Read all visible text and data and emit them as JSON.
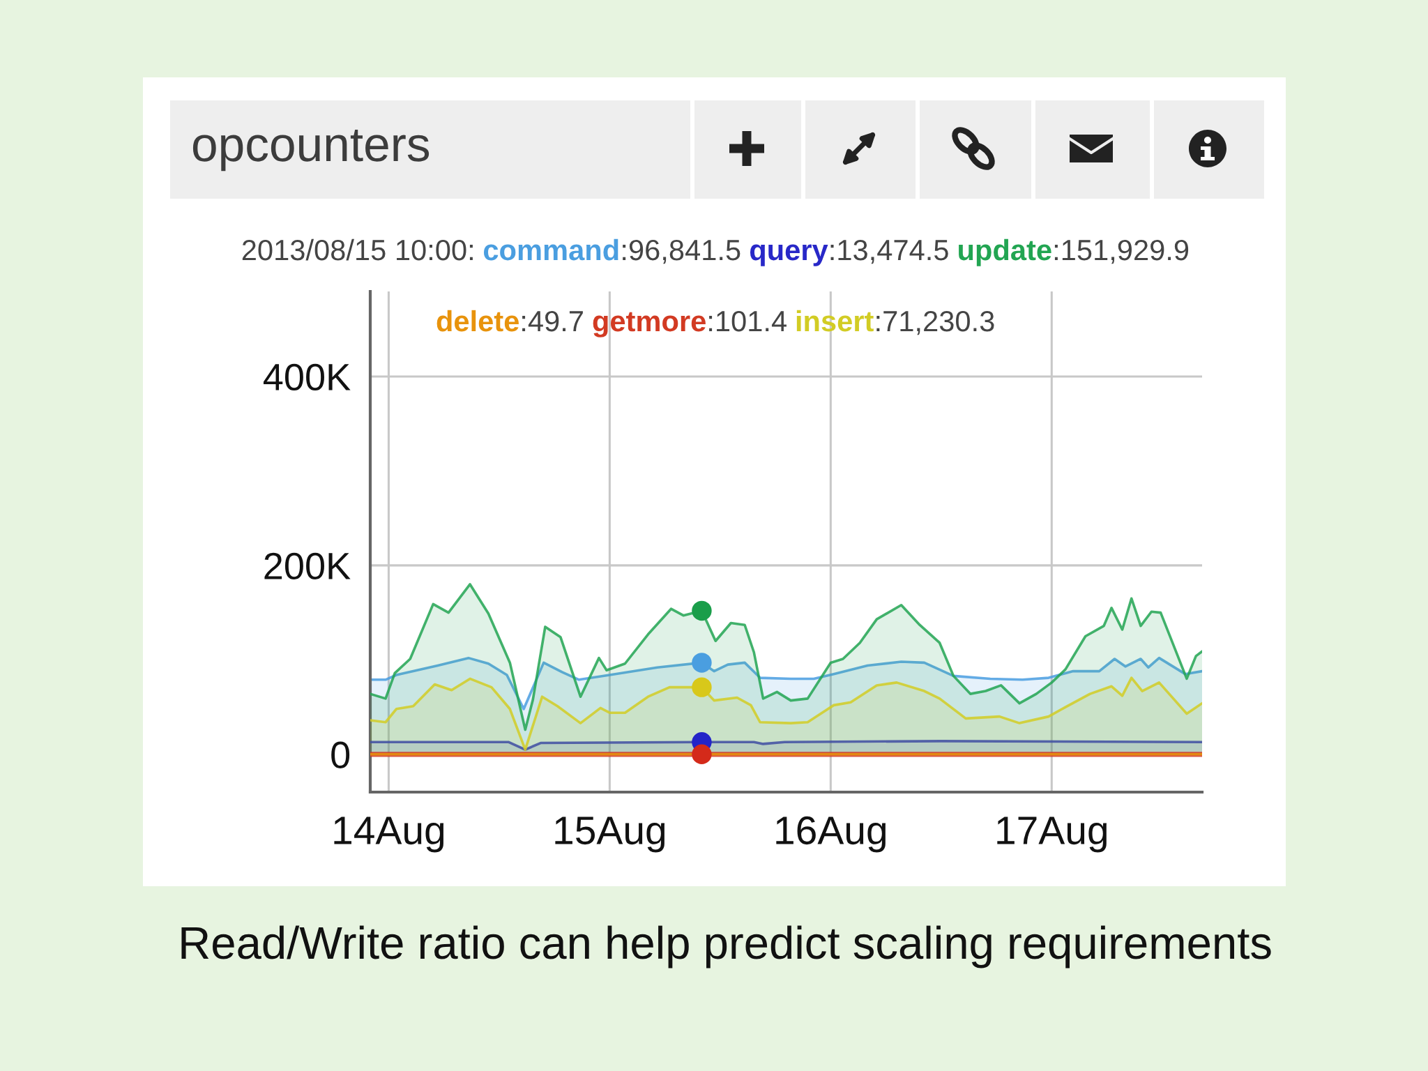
{
  "chart_data": {
    "type": "area",
    "title": "opcounters",
    "annotations": [
      "2013/08/15 10:00:",
      ":96,841.5",
      ":13,474.5",
      ":151,929.9",
      ":49.7",
      ":101.4",
      ":71,230.3",
      "Read/Write ratio can help predict scaling requirements"
    ],
    "legend": "top",
    "grid": true,
    "xlim": [
      "2013-08-13T22:00",
      "2013-08-17T16:20"
    ],
    "ylim": [
      -40000,
      490000
    ],
    "xticks": [
      {
        "value": "2013-08-14",
        "label": "14Aug"
      },
      {
        "value": "2013-08-15",
        "label": "15Aug"
      },
      {
        "value": "2013-08-16",
        "label": "16Aug"
      },
      {
        "value": "2013-08-17",
        "label": "17Aug"
      }
    ],
    "yticks": [
      0,
      {
        "value": 200000,
        "label": "200K"
      },
      {
        "value": 400000,
        "label": "400K"
      }
    ],
    "series": [
      {
        "name": "command",
        "color": "#4a9ee0",
        "x": [
          "2013-08-13T22:00",
          "2013-08-13T23:40",
          "2013-08-14T00:50",
          "2013-08-14T05:20",
          "2013-08-14T08:40",
          "2013-08-14T10:50",
          "2013-08-14T12:50",
          "2013-08-14T14:40",
          "2013-08-14T16:50",
          "2013-08-14T18:50",
          "2013-08-14T20:40",
          "2013-08-15T00:00",
          "2013-08-15T05:10",
          "2013-08-15T10:00",
          "2013-08-15T11:20",
          "2013-08-15T12:50",
          "2013-08-15T14:40",
          "2013-08-15T16:20",
          "2013-08-15T19:40",
          "2013-08-15T22:10",
          "2013-08-16T00:20",
          "2013-08-16T04:00",
          "2013-08-16T07:40",
          "2013-08-16T10:10",
          "2013-08-16T13:20",
          "2013-08-16T17:20",
          "2013-08-16T20:50",
          "2013-08-16T23:40",
          "2013-08-17T02:20",
          "2013-08-17T05:10",
          "2013-08-17T06:50",
          "2013-08-17T08:00",
          "2013-08-17T09:40",
          "2013-08-17T10:30",
          "2013-08-17T11:40",
          "2013-08-17T14:30",
          "2013-08-17T16:20"
        ],
        "values": [
          79000,
          79000,
          84000,
          94000,
          102000,
          96000,
          84000,
          48000,
          97000,
          87000,
          79000,
          84000,
          92000,
          97000,
          88000,
          95000,
          97000,
          81000,
          80000,
          80000,
          85000,
          94000,
          98000,
          97000,
          83000,
          80000,
          79000,
          81000,
          88000,
          88000,
          101000,
          93000,
          101000,
          92000,
          102000,
          85000,
          88000
        ]
      },
      {
        "name": "query",
        "color": "#2828c8",
        "x": [
          "2013-08-13T22:00",
          "2013-08-14T13:00",
          "2013-08-14T14:50",
          "2013-08-14T16:30",
          "2013-08-15T10:00",
          "2013-08-15T15:40",
          "2013-08-15T16:40",
          "2013-08-15T19:00",
          "2013-08-16T12:00",
          "2013-08-17T16:20"
        ],
        "values": [
          13000,
          13000,
          5000,
          12000,
          13000,
          13000,
          11000,
          13000,
          14000,
          13000
        ]
      },
      {
        "name": "update",
        "color": "#22a552",
        "x": [
          "2013-08-13T22:00",
          "2013-08-13T23:40",
          "2013-08-14T00:40",
          "2013-08-14T02:20",
          "2013-08-14T04:50",
          "2013-08-14T06:30",
          "2013-08-14T08:50",
          "2013-08-14T10:50",
          "2013-08-14T13:10",
          "2013-08-14T14:50",
          "2013-08-14T15:40",
          "2013-08-14T17:00",
          "2013-08-14T18:40",
          "2013-08-14T20:50",
          "2013-08-14T22:50",
          "2013-08-14T23:40",
          "2013-08-15T01:40",
          "2013-08-15T04:10",
          "2013-08-15T06:40",
          "2013-08-15T08:00",
          "2013-08-15T10:00",
          "2013-08-15T11:30",
          "2013-08-15T13:10",
          "2013-08-15T14:40",
          "2013-08-15T15:40",
          "2013-08-15T16:40",
          "2013-08-15T18:10",
          "2013-08-15T19:40",
          "2013-08-15T21:30",
          "2013-08-16T00:00",
          "2013-08-16T01:20",
          "2013-08-16T03:10",
          "2013-08-16T05:00",
          "2013-08-16T07:40",
          "2013-08-16T09:40",
          "2013-08-16T11:50",
          "2013-08-16T13:20",
          "2013-08-16T15:10",
          "2013-08-16T16:50",
          "2013-08-16T18:30",
          "2013-08-16T20:30",
          "2013-08-16T22:20",
          "2013-08-17T00:00",
          "2013-08-17T01:30",
          "2013-08-17T03:40",
          "2013-08-17T05:40",
          "2013-08-17T06:30",
          "2013-08-17T07:40",
          "2013-08-17T08:40",
          "2013-08-17T09:40",
          "2013-08-17T10:50",
          "2013-08-17T11:50",
          "2013-08-17T14:40",
          "2013-08-17T15:40",
          "2013-08-17T16:20"
        ],
        "values": [
          64000,
          59000,
          86000,
          101000,
          159000,
          150000,
          180000,
          149000,
          97000,
          26000,
          58000,
          135000,
          124000,
          61000,
          102000,
          89000,
          96000,
          127000,
          154000,
          147000,
          152000,
          120000,
          139000,
          137000,
          108000,
          59000,
          66000,
          57000,
          59000,
          97000,
          101000,
          118000,
          143000,
          158000,
          137000,
          118000,
          83000,
          64000,
          67000,
          73000,
          54000,
          64000,
          76000,
          90000,
          125000,
          136000,
          155000,
          132000,
          165000,
          136000,
          151000,
          150000,
          80000,
          104000,
          109000
        ]
      },
      {
        "name": "delete",
        "type": "line",
        "color": "#e8930c",
        "x": [
          "2013-08-13T22:00",
          "2013-08-17T16:20"
        ],
        "values": [
          0,
          0
        ]
      },
      {
        "name": "getmore",
        "type": "line",
        "color": "#d23a22",
        "x": [
          "2013-08-13T22:00",
          "2013-08-17T16:20"
        ],
        "values": [
          0,
          0
        ]
      },
      {
        "name": "insert",
        "color": "#d2cc24",
        "x": [
          "2013-08-13T22:00",
          "2013-08-13T23:40",
          "2013-08-14T00:50",
          "2013-08-14T02:40",
          "2013-08-14T05:00",
          "2013-08-14T06:50",
          "2013-08-14T08:50",
          "2013-08-14T11:10",
          "2013-08-14T13:10",
          "2013-08-14T14:50",
          "2013-08-14T16:40",
          "2013-08-14T18:20",
          "2013-08-14T20:50",
          "2013-08-14T23:00",
          "2013-08-15T00:00",
          "2013-08-15T01:40",
          "2013-08-15T04:10",
          "2013-08-15T06:30",
          "2013-08-15T10:00",
          "2013-08-15T11:20",
          "2013-08-15T13:50",
          "2013-08-15T15:20",
          "2013-08-15T16:20",
          "2013-08-15T19:40",
          "2013-08-15T21:30",
          "2013-08-16T00:20",
          "2013-08-16T02:10",
          "2013-08-16T05:00",
          "2013-08-16T07:10",
          "2013-08-16T10:10",
          "2013-08-16T11:50",
          "2013-08-16T14:40",
          "2013-08-16T18:20",
          "2013-08-16T20:30",
          "2013-08-16T23:40",
          "2013-08-17T01:30",
          "2013-08-17T04:10",
          "2013-08-17T06:30",
          "2013-08-17T07:40",
          "2013-08-17T08:40",
          "2013-08-17T09:50",
          "2013-08-17T11:40",
          "2013-08-17T14:40",
          "2013-08-17T16:20"
        ],
        "values": [
          36000,
          34000,
          48000,
          51000,
          74000,
          68000,
          80000,
          71000,
          48000,
          5000,
          61000,
          51000,
          33000,
          49000,
          44000,
          44000,
          61000,
          71000,
          71000,
          57000,
          60000,
          52000,
          34000,
          33000,
          34000,
          52000,
          55000,
          73000,
          76000,
          67000,
          59000,
          38000,
          40000,
          33000,
          40000,
          50000,
          64000,
          72000,
          62000,
          81000,
          67000,
          76000,
          43000,
          54000
        ]
      },
      {
        "type": "scatter",
        "marker": "circle",
        "x": [
          "2013-08-15T10:00",
          "2013-08-15T10:00",
          "2013-08-15T10:00",
          "2013-08-15T10:00",
          "2013-08-15T10:00"
        ],
        "values": [
          97000,
          13000,
          152000,
          0,
          71000
        ],
        "colors": [
          "#4a9ee0",
          "#2424c8",
          "#1a9e4a",
          "#d42a1a",
          "#d8c81a"
        ]
      }
    ]
  }
}
